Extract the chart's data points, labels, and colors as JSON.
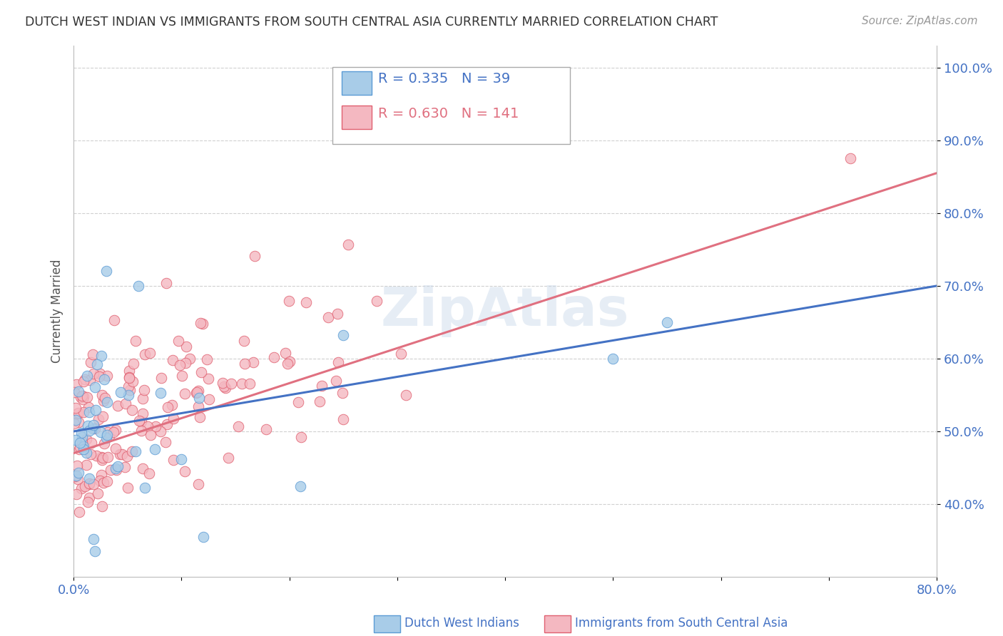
{
  "title": "DUTCH WEST INDIAN VS IMMIGRANTS FROM SOUTH CENTRAL ASIA CURRENTLY MARRIED CORRELATION CHART",
  "source": "Source: ZipAtlas.com",
  "ylabel": "Currently Married",
  "series1_color": "#a8cce8",
  "series1_edge": "#5b9bd5",
  "series2_color": "#f4b8c1",
  "series2_edge": "#e06070",
  "line1_color": "#4472c4",
  "line2_color": "#e07080",
  "R1": 0.335,
  "N1": 39,
  "R2": 0.63,
  "N2": 141,
  "legend_label1": "Dutch West Indians",
  "legend_label2": "Immigrants from South Central Asia",
  "watermark": "ZipAtlas",
  "background_color": "#ffffff",
  "grid_color": "#d0d0d0",
  "title_color": "#333333",
  "axis_color": "#4472c4",
  "ytick_positions": [
    0.4,
    0.5,
    0.6,
    0.7,
    0.8,
    0.9,
    1.0
  ],
  "ytick_labels": [
    "40.0%",
    "50.0%",
    "60.0%",
    "70.0%",
    "80.0%",
    "90.0%",
    "100.0%"
  ],
  "xlim": [
    0.0,
    0.8
  ],
  "ylim": [
    0.3,
    1.03
  ]
}
